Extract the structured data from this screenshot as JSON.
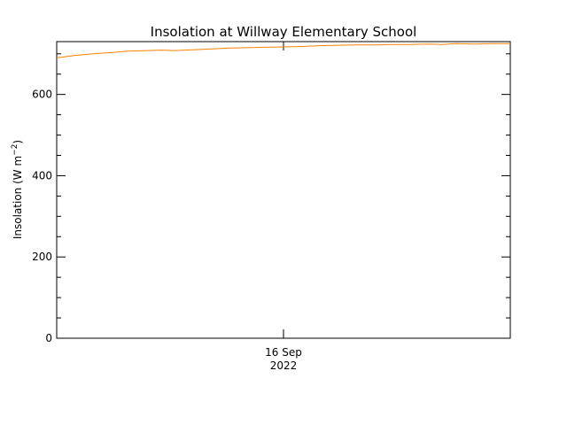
{
  "chart_data": {
    "type": "line",
    "title": "Insolation at Willway Elementary School",
    "ylabel_main": "Insolation (W m",
    "ylabel_sup": "−2",
    "ylabel_close": ")",
    "xlabel_line1": "16 Sep",
    "xlabel_line2": "2022",
    "ylim": [
      0,
      730
    ],
    "y_ticks": [
      0,
      200,
      400,
      600
    ],
    "y_tick_labels": [
      "0",
      "200",
      "400",
      "600"
    ],
    "y_minor_step": 50,
    "x_tick_label_position_fraction": 0.5,
    "grid": false,
    "legend": "none",
    "series": [
      {
        "color": "#ff8000",
        "x_fraction": [
          0,
          0.04,
          0.08,
          0.12,
          0.16,
          0.2,
          0.23,
          0.26,
          0.3,
          0.34,
          0.38,
          0.42,
          0.46,
          0.5,
          0.54,
          0.58,
          0.62,
          0.66,
          0.7,
          0.74,
          0.78,
          0.82,
          0.85,
          0.88,
          0.92,
          0.96,
          1.0
        ],
        "values": [
          690,
          696,
          700,
          703,
          707,
          708,
          709,
          708,
          710,
          712,
          714,
          715,
          716,
          717,
          718,
          720,
          721,
          722,
          722,
          723,
          723,
          724,
          723,
          725,
          724,
          725,
          725
        ]
      }
    ]
  }
}
